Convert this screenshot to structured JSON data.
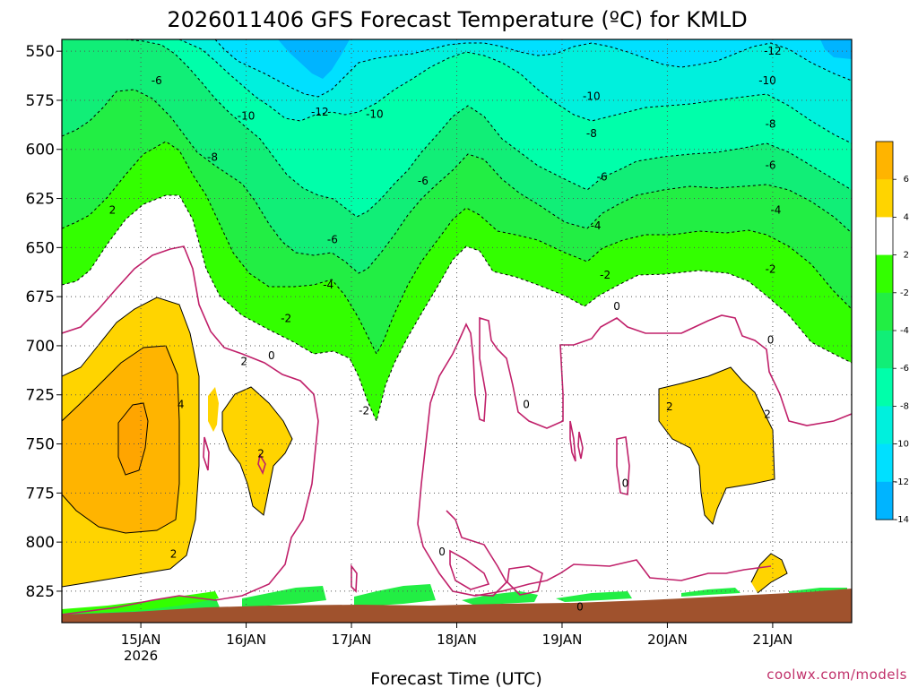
{
  "chart_data": {
    "type": "heatmap",
    "title": "2026011406 GFS Forecast Temperature (ºC) for KMLD",
    "xlabel": "Forecast Time (UTC)",
    "ylabel": "",
    "credit": "coolwx.com/models",
    "x_range": [
      14.25,
      21.75
    ],
    "x_ticks": [
      {
        "value": 15,
        "label": "15JAN",
        "sublabel": "2026"
      },
      {
        "value": 16,
        "label": "16JAN",
        "sublabel": ""
      },
      {
        "value": 17,
        "label": "17JAN",
        "sublabel": ""
      },
      {
        "value": 18,
        "label": "18JAN",
        "sublabel": ""
      },
      {
        "value": 19,
        "label": "19JAN",
        "sublabel": ""
      },
      {
        "value": 20,
        "label": "20JAN",
        "sublabel": ""
      },
      {
        "value": 21,
        "label": "21JAN",
        "sublabel": ""
      }
    ],
    "y_range": [
      544,
      841
    ],
    "y_axis_inverted": true,
    "y_ticks": [
      550,
      575,
      600,
      625,
      650,
      675,
      700,
      725,
      750,
      775,
      800,
      825
    ],
    "grid": true,
    "colorbar": {
      "levels": [
        -14,
        -12,
        -10,
        -8,
        -6,
        -4,
        -2,
        2,
        4,
        6
      ],
      "tick_labels": [
        "6",
        "4",
        "2",
        "-2",
        "-4",
        "-6",
        "-8",
        "-10",
        "-12",
        "-14"
      ],
      "bands": [
        {
          "range": "4 to 8",
          "color": "#ffb400"
        },
        {
          "range": "2 to 4",
          "color": "#ffd400"
        },
        {
          "range": "-2 to 2",
          "color": "#ffffff"
        },
        {
          "range": "-4 to -2",
          "color": "#33ff00"
        },
        {
          "range": "-6 to -4",
          "color": "#22ee44"
        },
        {
          "range": "-8 to -6",
          "color": "#11ee77"
        },
        {
          "range": "-10 to -8",
          "color": "#00ffaa"
        },
        {
          "range": "-12 to -10",
          "color": "#00f0dd"
        },
        {
          "range": "-14 to -12",
          "color": "#00e0ff"
        },
        {
          "range": "below -14",
          "color": "#00b4ff"
        }
      ]
    },
    "contour_labels": [
      {
        "text": "-12",
        "x": 21.0,
        "y": 550
      },
      {
        "text": "-6",
        "x": 15.15,
        "y": 565
      },
      {
        "text": "-10",
        "x": 16.0,
        "y": 583
      },
      {
        "text": "-12",
        "x": 16.7,
        "y": 581
      },
      {
        "text": "-10",
        "x": 17.22,
        "y": 582
      },
      {
        "text": "-10",
        "x": 19.28,
        "y": 573
      },
      {
        "text": "-10",
        "x": 20.95,
        "y": 565
      },
      {
        "text": "-8",
        "x": 15.68,
        "y": 604
      },
      {
        "text": "-8",
        "x": 19.28,
        "y": 592
      },
      {
        "text": "-8",
        "x": 20.98,
        "y": 587
      },
      {
        "text": "-6",
        "x": 17.68,
        "y": 616
      },
      {
        "text": "-6",
        "x": 19.38,
        "y": 614
      },
      {
        "text": "-6",
        "x": 20.98,
        "y": 608
      },
      {
        "text": "2",
        "x": 14.73,
        "y": 631
      },
      {
        "text": "-4",
        "x": 19.32,
        "y": 639
      },
      {
        "text": "-4",
        "x": 21.03,
        "y": 631
      },
      {
        "text": "-6",
        "x": 16.82,
        "y": 646
      },
      {
        "text": "-2",
        "x": 19.41,
        "y": 664
      },
      {
        "text": "-2",
        "x": 20.98,
        "y": 661
      },
      {
        "text": "-4",
        "x": 16.78,
        "y": 669
      },
      {
        "text": "0",
        "x": 19.52,
        "y": 680
      },
      {
        "text": "-2",
        "x": 16.38,
        "y": 686
      },
      {
        "text": "0",
        "x": 20.98,
        "y": 697
      },
      {
        "text": "2",
        "x": 15.98,
        "y": 708
      },
      {
        "text": "0",
        "x": 16.24,
        "y": 705
      },
      {
        "text": "4",
        "x": 15.38,
        "y": 730
      },
      {
        "text": "-2",
        "x": 17.12,
        "y": 733
      },
      {
        "text": "0",
        "x": 18.66,
        "y": 730
      },
      {
        "text": "2",
        "x": 20.02,
        "y": 731
      },
      {
        "text": "2",
        "x": 20.95,
        "y": 735
      },
      {
        "text": "2",
        "x": 16.14,
        "y": 755
      },
      {
        "text": "0",
        "x": 19.6,
        "y": 770
      },
      {
        "text": "2",
        "x": 15.31,
        "y": 806
      },
      {
        "text": "0",
        "x": 17.86,
        "y": 805
      },
      {
        "text": "0",
        "x": 19.17,
        "y": 833
      }
    ]
  }
}
